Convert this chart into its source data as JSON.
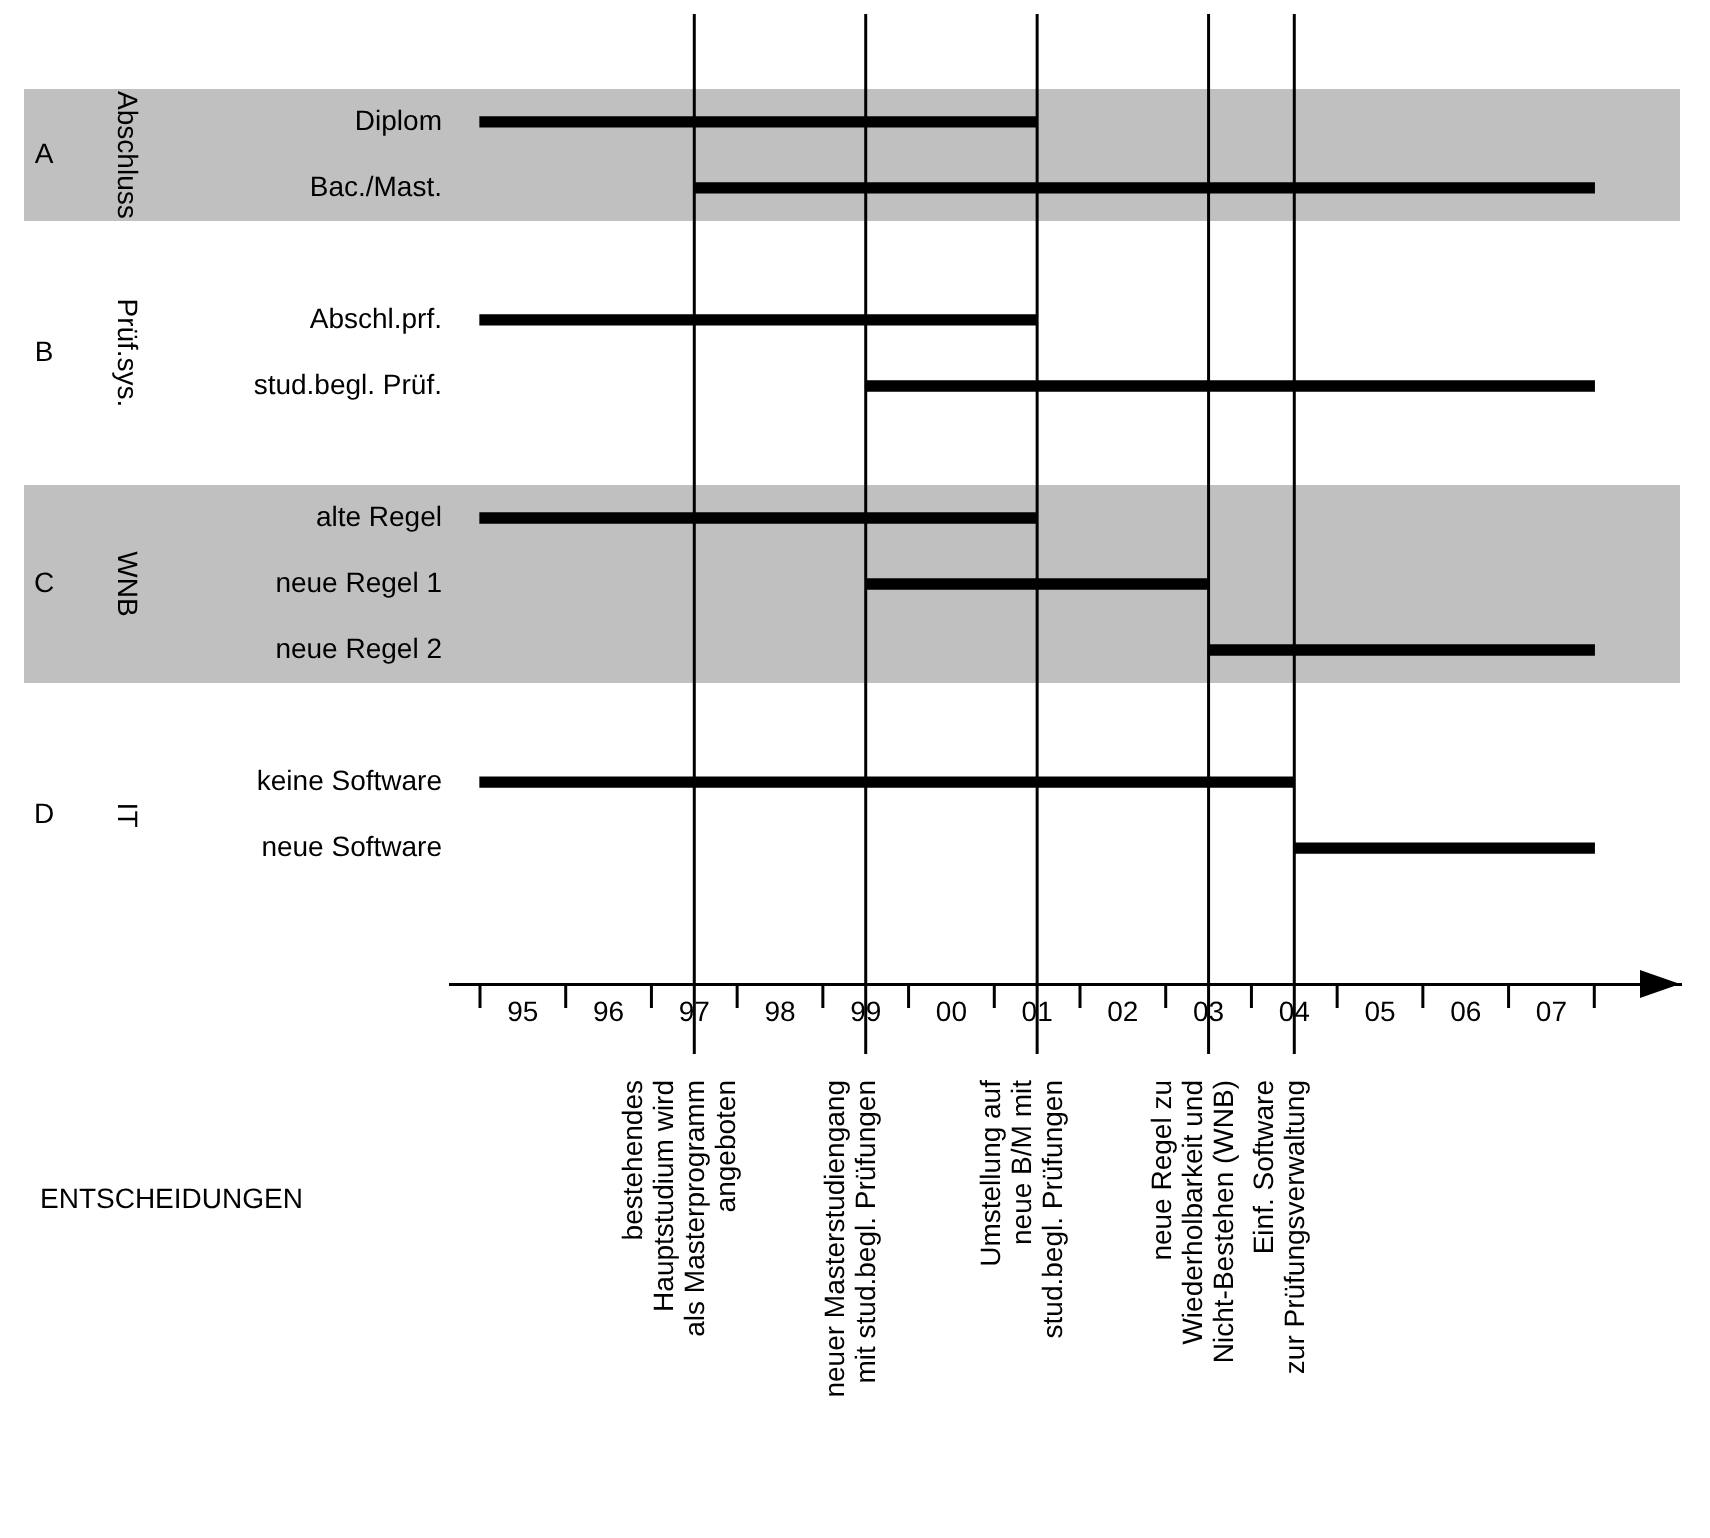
{
  "chart_data": {
    "type": "bar",
    "orientation": "horizontal",
    "categories": [
      "Diplom",
      "Bac./Mast.",
      null,
      "Abschl.prf.",
      "stud.begl. Prüf.",
      null,
      "alte Regel",
      "neue Regel 1",
      "neue Regel 2",
      null,
      "keine Software",
      "neue Software"
    ],
    "base": [
      1994.5,
      1997,
      null,
      1994.5,
      1999,
      null,
      1994.5,
      1999,
      2003,
      null,
      1994.5,
      2004
    ],
    "values": [
      6.5,
      10.5,
      null,
      6.5,
      8.5,
      null,
      6.5,
      4,
      4.5,
      null,
      9.5,
      3.5
    ],
    "color": "#000000",
    "xlim": [
      1994.15,
      2008.5
    ],
    "xticks": [
      {
        "value": 1995,
        "label": "95"
      },
      {
        "value": 1996,
        "label": "96"
      },
      {
        "value": 1997,
        "label": "97"
      },
      {
        "value": 1998,
        "label": "98"
      },
      {
        "value": 1999,
        "label": "99"
      },
      {
        "value": 2000,
        "label": "00"
      },
      {
        "value": 2001,
        "label": "01"
      },
      {
        "value": 2002,
        "label": "02"
      },
      {
        "value": 2003,
        "label": "03"
      },
      {
        "value": 2004,
        "label": "04"
      },
      {
        "value": 2005,
        "label": "05"
      },
      {
        "value": 2006,
        "label": "06"
      },
      {
        "value": 2007,
        "label": "07"
      }
    ],
    "bands": [
      {
        "axis": "y",
        "from": "Diplom",
        "to": "Bac./Mast.",
        "color": "#c0c0c0"
      },
      {
        "axis": "y",
        "from": "alte Regel",
        "to": "neue Regel 2",
        "color": "#c0c0c0"
      }
    ],
    "ref_lines": [
      {
        "axis": "x",
        "value": 1997,
        "label": "bestehendes\nHauptstudium wird\nals Masterprogramm\nangeboten"
      },
      {
        "axis": "x",
        "value": 1999,
        "label": "neuer Masterstudiengang\nmit stud.begl. Prüfungen"
      },
      {
        "axis": "x",
        "value": 2001,
        "label": "Umstellung auf\nneue B/M mit\nstud.begl. Prüfungen"
      },
      {
        "axis": "x",
        "value": 2003,
        "label": "neue Regel zu\nWiederholbarkeit und\nNicht-Bestehen (WNB)"
      },
      {
        "axis": "x",
        "value": 2004,
        "label": "Einf. Software\nzur Prüfungsverwaltung"
      }
    ],
    "annotations": [
      "A",
      "Abschluss",
      "B",
      "Prüf.sys.",
      "C",
      "WNB",
      "D",
      "IT",
      "ENTSCHEIDUNGEN"
    ],
    "grid": false,
    "legend": false
  }
}
